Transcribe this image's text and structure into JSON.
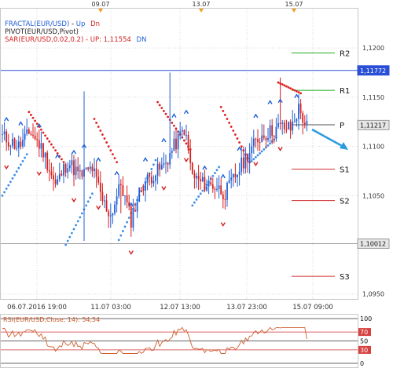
{
  "legend": {
    "fractal_name": "FRACTAL(EUR/USD)",
    "fractal_sep": " - ",
    "fractal_up": "Up",
    "fractal_dn": "Dn",
    "pivot_name": "PIVOT(EUR/USD,Pivot)",
    "sar_name": "SAR(EUR/USD,0.02,0.2)",
    "sar_sep": " - ",
    "sar_up": "UP: 1,11554",
    "sar_dn": "DN"
  },
  "colors": {
    "up_candle": "#1f5fd6",
    "down_candle": "#d42020",
    "sar_up": "#3a8ee8",
    "sar_down": "#e02020",
    "pivot_resistance": "#1fae1f",
    "pivot_support": "#d03030",
    "pivot_main": "#505050",
    "current_price": "#2a4fd6",
    "rsi_line": "#d06030",
    "arrow": "#2a9be0",
    "marker": "#f0a020"
  },
  "top_markers": [
    "09.07",
    "13.07",
    "15.07"
  ],
  "pivot_labels": [
    "R2",
    "R1",
    "P",
    "S1",
    "S2",
    "S3"
  ],
  "chart_data": {
    "type": "candlestick",
    "symbol": "EUR/USD",
    "y_ticks": [
      "1,1200",
      "1,1150",
      "1,1100",
      "1,1050",
      "1,0950"
    ],
    "ylim": [
      1.0945,
      1.124
    ],
    "x_ticks": [
      "06.07.2016 19:00",
      "11.07 03:00",
      "12.07 13:00",
      "13.07 23:00",
      "15.07 09:00"
    ],
    "price_tags": [
      {
        "label": "1,11772",
        "value": 1.11772,
        "kind": "current"
      },
      {
        "label": "1,11217",
        "value": 1.11217,
        "kind": "pivot"
      },
      {
        "label": "1,10012",
        "value": 1.10012,
        "kind": "plain"
      }
    ],
    "pivot_levels": [
      {
        "name": "R2",
        "value": 1.1195
      },
      {
        "name": "R1",
        "value": 1.1157
      },
      {
        "name": "P",
        "value": 1.1122
      },
      {
        "name": "S1",
        "value": 1.1077
      },
      {
        "name": "S2",
        "value": 1.1045
      },
      {
        "name": "S3",
        "value": 1.0968
      }
    ],
    "sar": {
      "up": 1.11554
    },
    "rsi": {
      "label": "RSI(EUR/USD,Close, 14): 54,54",
      "value": 54.54,
      "period": 14,
      "ticks": [
        "100",
        "70",
        "50",
        "30",
        "0"
      ],
      "levels": [
        100,
        70,
        50,
        30,
        0
      ]
    }
  }
}
